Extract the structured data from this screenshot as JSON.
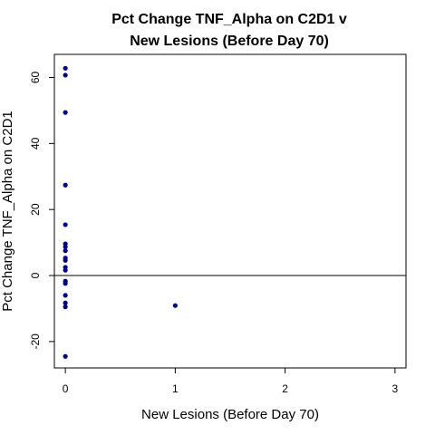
{
  "chart_data": {
    "type": "scatter",
    "title_lines": [
      "Pct Change TNF_Alpha on C2D1 v",
      "New Lesions (Before Day 70)"
    ],
    "xlabel": "New Lesions (Before Day 70)",
    "ylabel": "Pct Change TNF_Alpha on C2D1",
    "xlim": [
      -0.1,
      3.1
    ],
    "ylim": [
      -28,
      67
    ],
    "x_ticks": [
      0,
      1,
      2,
      3
    ],
    "x_tick_labels": [
      "0",
      "1",
      "2",
      "3"
    ],
    "y_ticks": [
      -20,
      0,
      20,
      40,
      60
    ],
    "y_tick_labels": [
      "-20",
      "0",
      "20",
      "40",
      "60"
    ],
    "reference_line_y": 0,
    "point_color": "#00008b",
    "points": [
      {
        "x": 0,
        "y": 62.8
      },
      {
        "x": 0,
        "y": 60.7
      },
      {
        "x": 0,
        "y": 49.4
      },
      {
        "x": 0,
        "y": 27.4
      },
      {
        "x": 0,
        "y": 15.4
      },
      {
        "x": 0,
        "y": 9.6
      },
      {
        "x": 0,
        "y": 8.7
      },
      {
        "x": 0,
        "y": 7.5
      },
      {
        "x": 0,
        "y": 5.3
      },
      {
        "x": 0,
        "y": 4.6
      },
      {
        "x": 0,
        "y": 2.5
      },
      {
        "x": 0,
        "y": 1.6
      },
      {
        "x": 0,
        "y": -1.7
      },
      {
        "x": 0,
        "y": -2.4
      },
      {
        "x": 0,
        "y": -6.0
      },
      {
        "x": 0,
        "y": -8.3
      },
      {
        "x": 0,
        "y": -9.5
      },
      {
        "x": 0,
        "y": -24.5
      },
      {
        "x": 1,
        "y": -9.1
      }
    ]
  }
}
